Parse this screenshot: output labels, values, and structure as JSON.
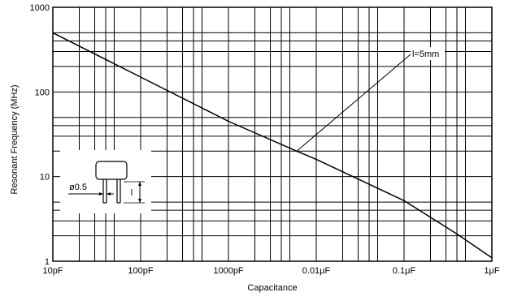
{
  "chart_data": {
    "type": "line",
    "title": "",
    "xlabel": "Capacitance",
    "ylabel": "Resonant Frequency (MHz)",
    "x_scale": "log",
    "y_scale": "log",
    "xlim": [
      10,
      1000000
    ],
    "ylim": [
      1,
      1000
    ],
    "x_unit": "pF",
    "x_ticks": [
      {
        "value": 10,
        "label": "10pF"
      },
      {
        "value": 100,
        "label": "100pF"
      },
      {
        "value": 1000,
        "label": "1000pF"
      },
      {
        "value": 10000,
        "label": "0.01μF"
      },
      {
        "value": 100000,
        "label": "0.1μF"
      },
      {
        "value": 1000000,
        "label": "1μF"
      }
    ],
    "y_ticks": [
      {
        "value": 1,
        "label": "1"
      },
      {
        "value": 10,
        "label": "10"
      },
      {
        "value": 100,
        "label": "100"
      },
      {
        "value": 1000,
        "label": "1000"
      }
    ],
    "x_gridlines": [
      10,
      20,
      30,
      40,
      50,
      100,
      200,
      300,
      400,
      500,
      1000,
      2000,
      3000,
      4000,
      5000,
      10000,
      20000,
      30000,
      40000,
      50000,
      100000,
      200000,
      300000,
      400000,
      500000,
      1000000
    ],
    "y_gridlines": [
      1,
      2,
      3,
      4,
      5,
      10,
      20,
      30,
      40,
      50,
      100,
      200,
      300,
      400,
      500,
      1000
    ],
    "grid": true,
    "series": [
      {
        "name": "l=5mm",
        "x": [
          10,
          100,
          1000,
          6000,
          10000,
          100000,
          400000,
          1000000
        ],
        "y": [
          500,
          150,
          45,
          20,
          16,
          5.2,
          2.1,
          1.1
        ]
      }
    ],
    "annotations": [
      {
        "text": "l=5mm",
        "points_to": {
          "x": 6000,
          "y": 20
        }
      },
      {
        "text": "ø0.5"
      },
      {
        "text": "l"
      }
    ]
  }
}
